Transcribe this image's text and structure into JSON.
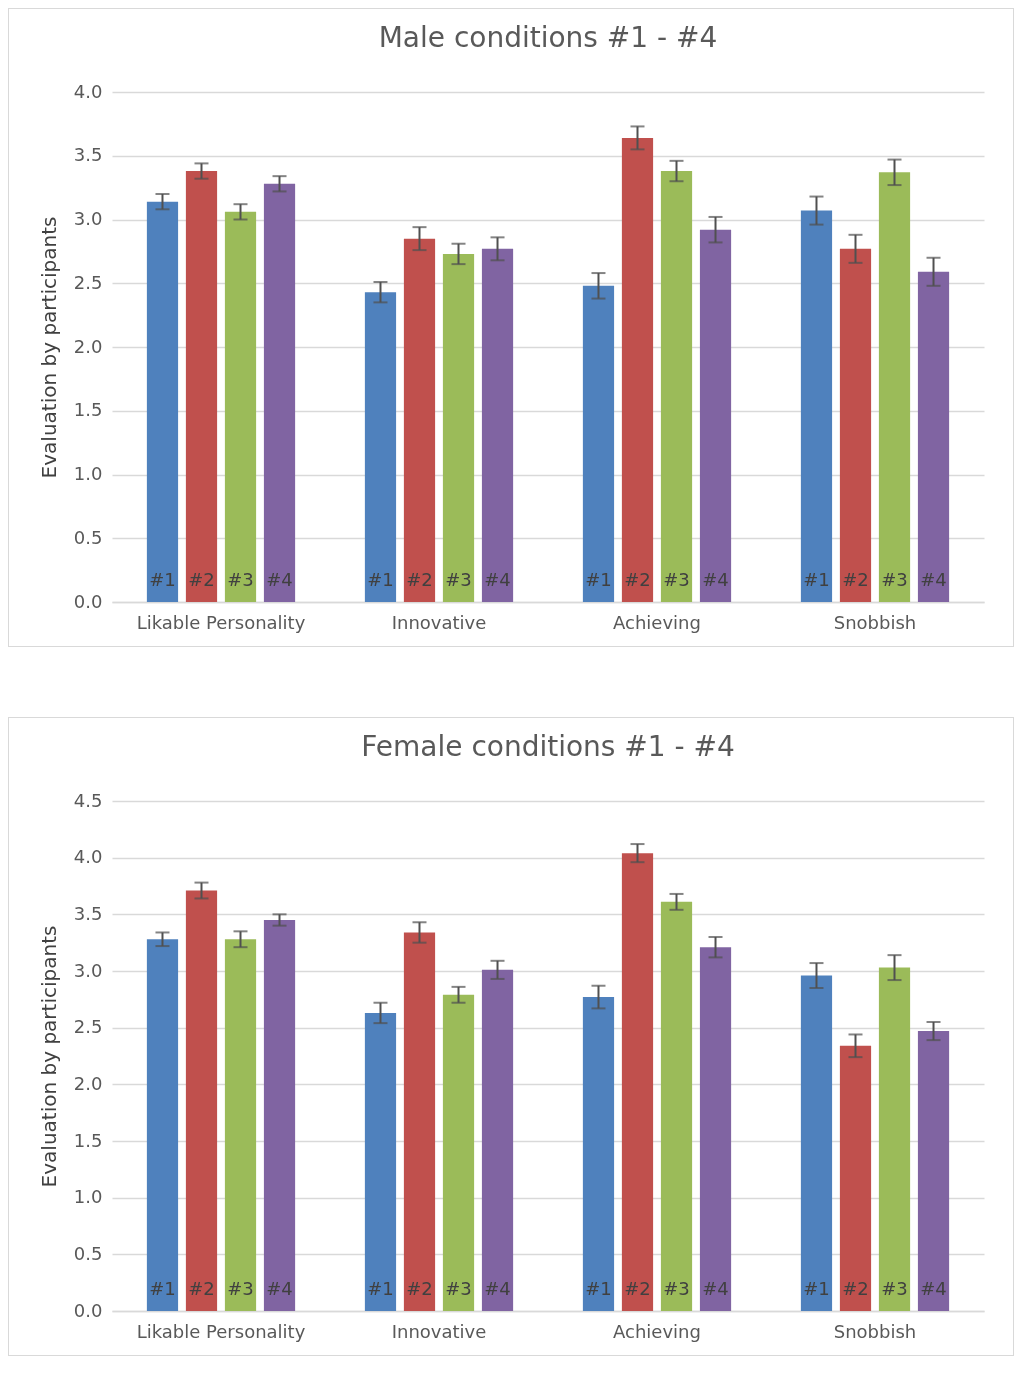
{
  "chart_data": [
    {
      "type": "bar",
      "title": "Male conditions #1 - #4",
      "ylabel": "Evaluation by participants",
      "categories": [
        "Likable Personality",
        "Innovative",
        "Achieving",
        "Snobbish"
      ],
      "series": [
        {
          "name": "#1",
          "color": "#4f81bd",
          "values": [
            3.14,
            2.43,
            2.48,
            3.07
          ],
          "errors": [
            0.06,
            0.08,
            0.1,
            0.11
          ]
        },
        {
          "name": "#2",
          "color": "#c0504d",
          "values": [
            3.38,
            2.85,
            3.64,
            2.77
          ],
          "errors": [
            0.06,
            0.09,
            0.09,
            0.11
          ]
        },
        {
          "name": "#3",
          "color": "#9bbb59",
          "values": [
            3.06,
            2.73,
            3.38,
            3.37
          ],
          "errors": [
            0.06,
            0.08,
            0.08,
            0.1
          ]
        },
        {
          "name": "#4",
          "color": "#8064a2",
          "values": [
            3.28,
            2.77,
            2.92,
            2.59
          ],
          "errors": [
            0.06,
            0.09,
            0.1,
            0.11
          ]
        }
      ],
      "ylim": [
        0,
        4
      ],
      "yticks": [
        {
          "value": 0,
          "label": "0.0"
        },
        {
          "value": 0.5,
          "label": "0.5"
        },
        {
          "value": 1,
          "label": "1.0"
        },
        {
          "value": 1.5,
          "label": "1.5"
        },
        {
          "value": 2,
          "label": "2.0"
        },
        {
          "value": 2.5,
          "label": "2.5"
        },
        {
          "value": 3,
          "label": "3.0"
        },
        {
          "value": 3.5,
          "label": "3.5"
        },
        {
          "value": 4,
          "label": "4.0"
        }
      ],
      "grid": "y",
      "legend": false
    },
    {
      "type": "bar",
      "title": "Female conditions #1 - #4",
      "ylabel": "Evaluation by participants",
      "categories": [
        "Likable Personality",
        "Innovative",
        "Achieving",
        "Snobbish"
      ],
      "series": [
        {
          "name": "#1",
          "color": "#4f81bd",
          "values": [
            3.28,
            2.63,
            2.77,
            2.96
          ],
          "errors": [
            0.06,
            0.09,
            0.1,
            0.11
          ]
        },
        {
          "name": "#2",
          "color": "#c0504d",
          "values": [
            3.71,
            3.34,
            4.04,
            2.34
          ],
          "errors": [
            0.07,
            0.09,
            0.08,
            0.1
          ]
        },
        {
          "name": "#3",
          "color": "#9bbb59",
          "values": [
            3.28,
            2.79,
            3.61,
            3.03
          ],
          "errors": [
            0.07,
            0.07,
            0.07,
            0.11
          ]
        },
        {
          "name": "#4",
          "color": "#8064a2",
          "values": [
            3.45,
            3.01,
            3.21,
            2.47
          ],
          "errors": [
            0.05,
            0.08,
            0.09,
            0.08
          ]
        }
      ],
      "ylim": [
        0,
        4.5
      ],
      "yticks": [
        {
          "value": 0,
          "label": "0.0"
        },
        {
          "value": 0.5,
          "label": "0.5"
        },
        {
          "value": 1,
          "label": "1.0"
        },
        {
          "value": 1.5,
          "label": "1.5"
        },
        {
          "value": 2,
          "label": "2.0"
        },
        {
          "value": 2.5,
          "label": "2.5"
        },
        {
          "value": 3,
          "label": "3.0"
        },
        {
          "value": 3.5,
          "label": "3.5"
        },
        {
          "value": 4,
          "label": "4.0"
        },
        {
          "value": 4.5,
          "label": "4.5"
        }
      ],
      "grid": "y",
      "legend": false
    }
  ]
}
